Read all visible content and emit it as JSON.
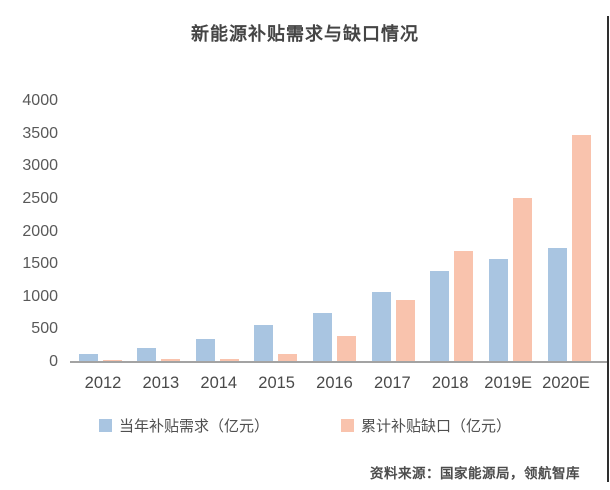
{
  "title": "新能源补贴需求与缺口情况",
  "chart_data": {
    "type": "bar",
    "title": "新能源补贴需求与缺口情况",
    "categories": [
      "2012",
      "2013",
      "2014",
      "2015",
      "2016",
      "2017",
      "2018",
      "2019E",
      "2020E"
    ],
    "series": [
      {
        "name": "当年补贴需求（亿元）",
        "color": "#a9c5e1",
        "values": [
          130,
          210,
          350,
          560,
          750,
          1070,
          1400,
          1580,
          1750
        ]
      },
      {
        "name": "累计补贴缺口（亿元）",
        "color": "#f9c3ad",
        "values": [
          30,
          40,
          50,
          130,
          400,
          950,
          1700,
          2520,
          3480
        ]
      }
    ],
    "ylim": [
      0,
      4000
    ],
    "yticks": [
      0,
      500,
      1000,
      1500,
      2000,
      2500,
      3000,
      3500,
      4000
    ],
    "grid": false,
    "legend_position": "bottom"
  },
  "legend": {
    "items": [
      {
        "label": "当年补贴需求（亿元）",
        "color": "#a9c5e1"
      },
      {
        "label": "累计补贴缺口（亿元）",
        "color": "#f9c3ad"
      }
    ]
  },
  "footer": {
    "source": "资料来源：国家能源局，领航智库"
  }
}
